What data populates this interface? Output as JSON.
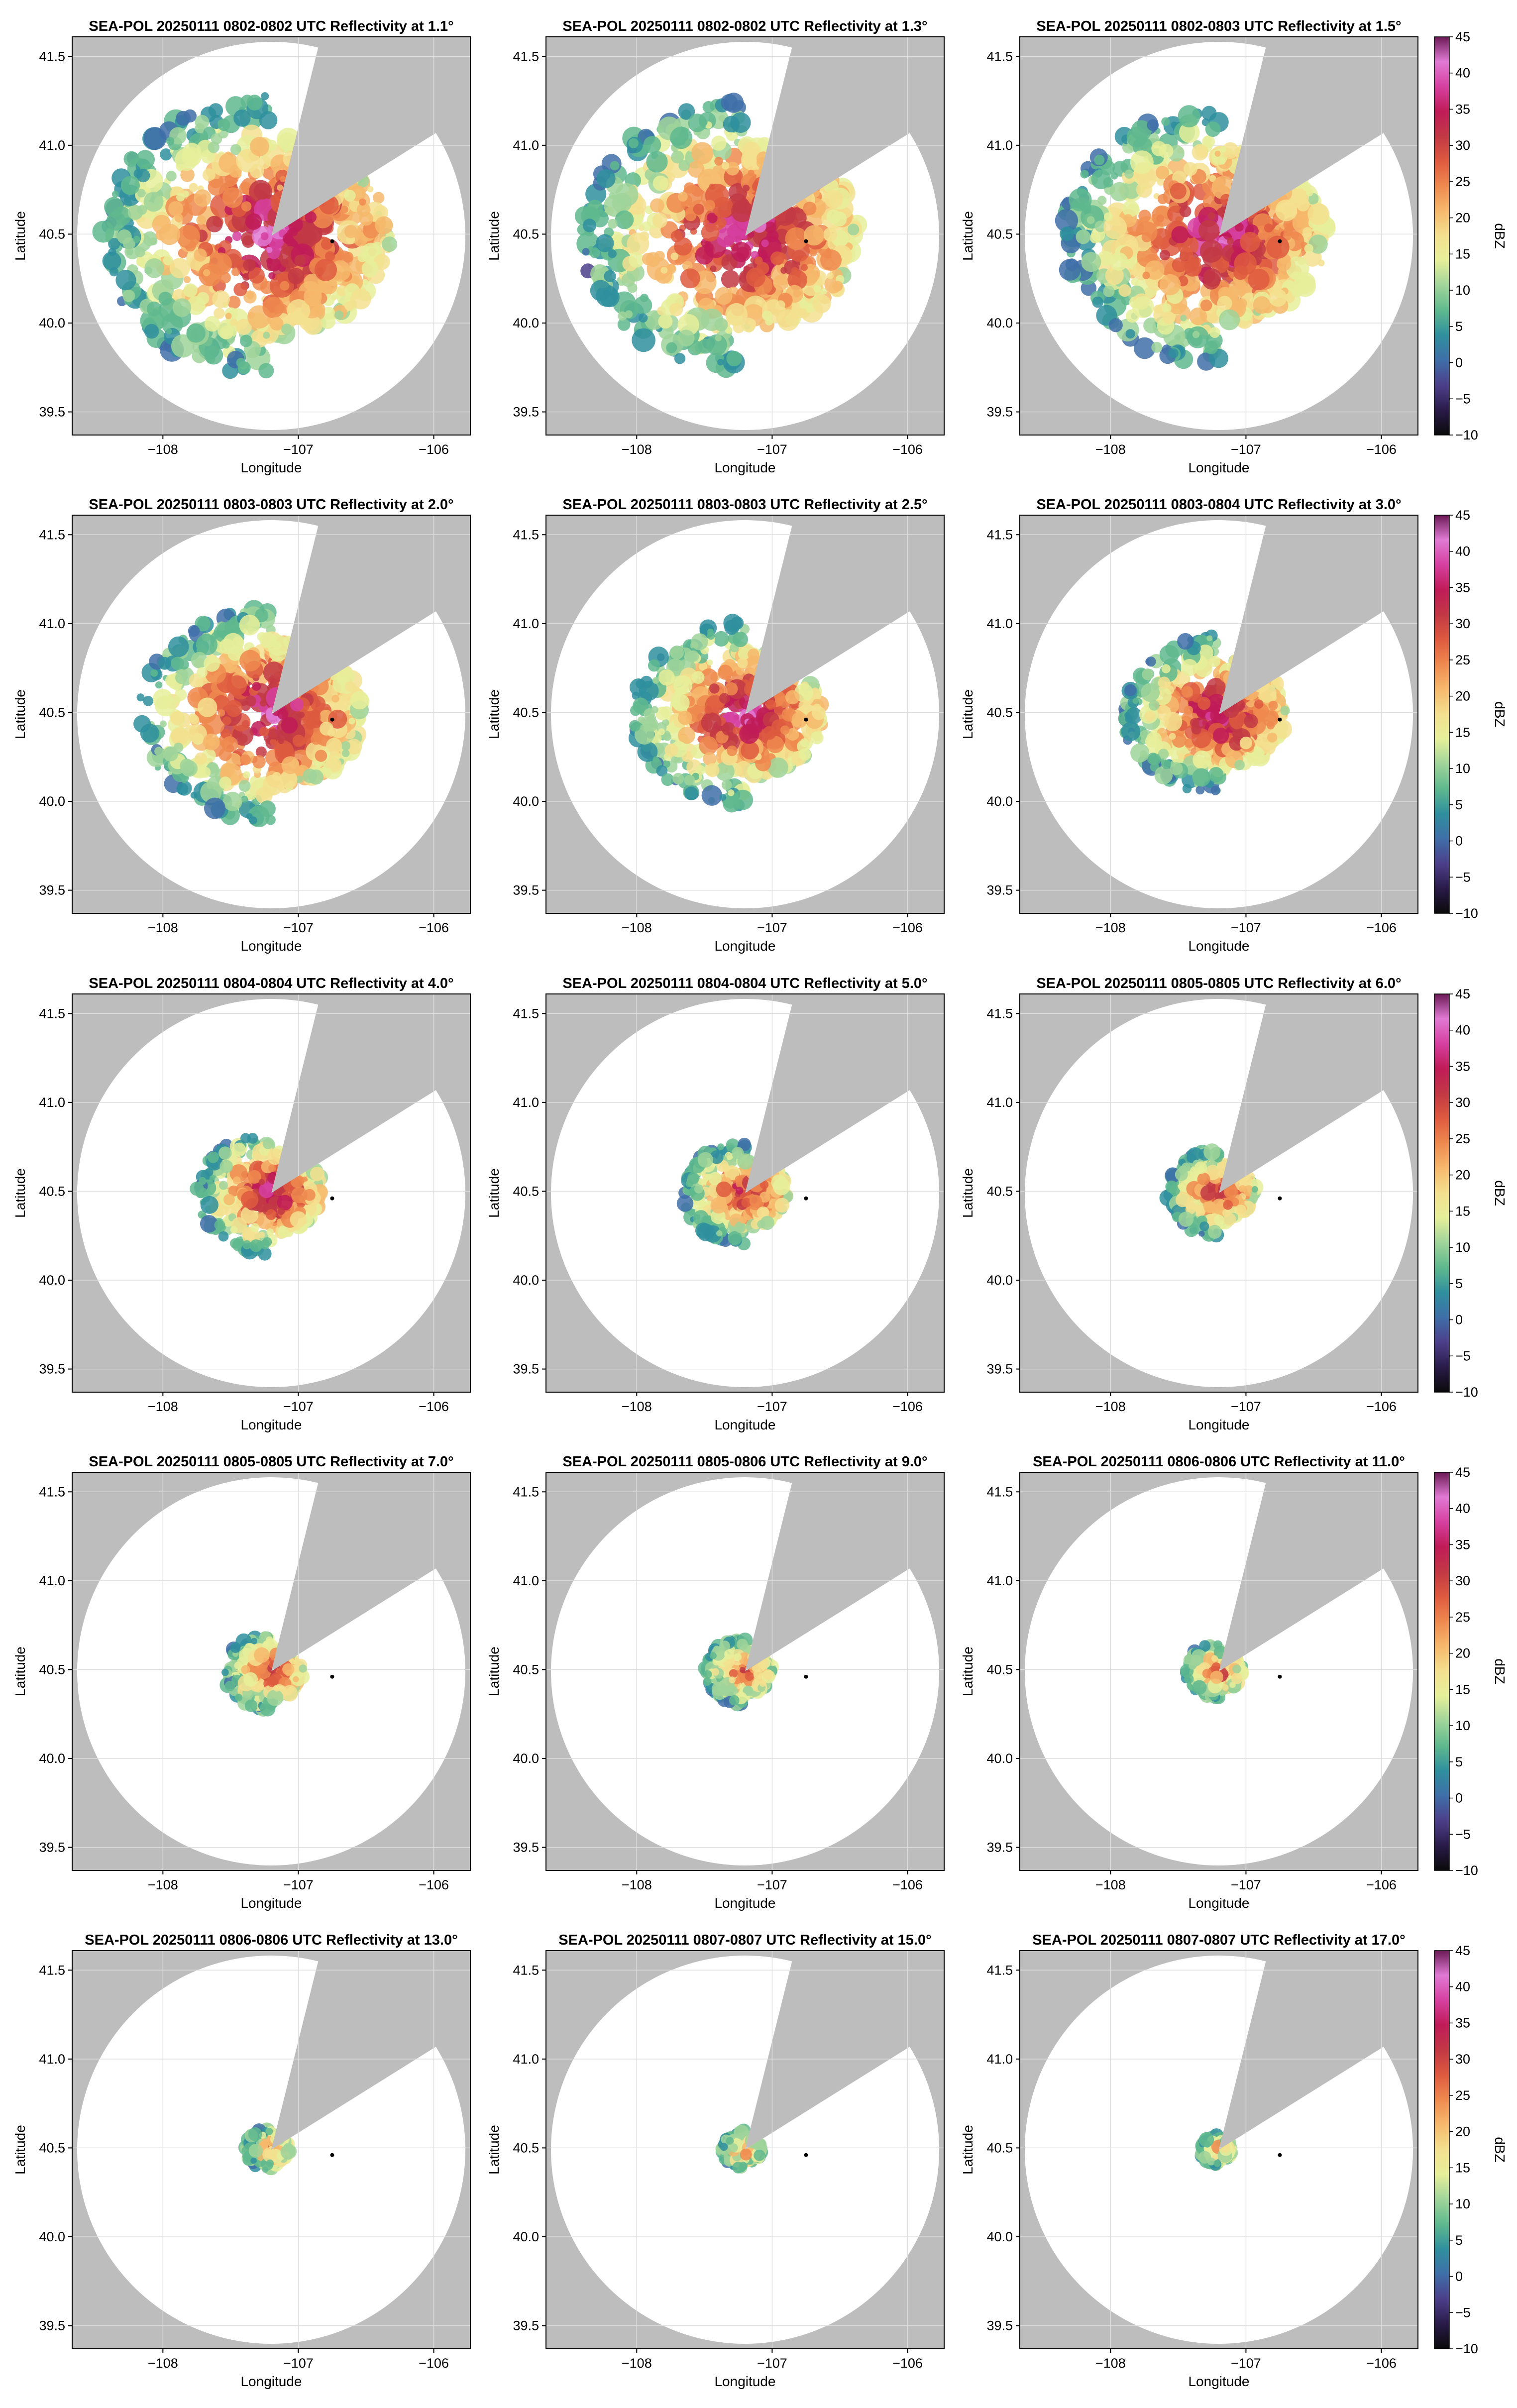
{
  "figure": {
    "colorbar_label": "dBZ",
    "colorbar_ticks": [
      "45",
      "40",
      "35",
      "30",
      "25",
      "20",
      "15",
      "10",
      "5",
      "0",
      "−5",
      "−10"
    ],
    "colors": {
      "no_coverage": "#bdbdbd",
      "grid": "#dddddd",
      "marker": "#000000"
    },
    "colormap": [
      "#0a0a0a",
      "#2a1b4a",
      "#4c3f8a",
      "#3f6fa8",
      "#2f8f9e",
      "#5fb98e",
      "#9fd49a",
      "#e6ef9a",
      "#f3e08f",
      "#f6b86c",
      "#ef8a4f",
      "#de5a3f",
      "#c23844",
      "#c01b58",
      "#d640a0",
      "#e07ad4",
      "#6b1a56"
    ]
  },
  "chart_data": [
    {
      "type": "heatmap",
      "title": "SEA-POL 20250111 0802-0802 UTC Reflectivity at 1.1°",
      "xlabel": "Longitude",
      "ylabel": "Latitude",
      "xticks": [
        "−108",
        "−107",
        "−106"
      ],
      "yticks": [
        "41.5",
        "41.0",
        "40.5",
        "40.0",
        "39.5"
      ],
      "xlim": [
        -108.67,
        -105.73
      ],
      "ylim": [
        39.37,
        41.61
      ],
      "radar_site": {
        "lon": -107.2,
        "lat": 40.48
      },
      "marker": {
        "lon": -106.75,
        "lat": 40.46
      },
      "echo_radius_deg": 1.1,
      "max_dbz": 40,
      "colorbar": false
    },
    {
      "type": "heatmap",
      "title": "SEA-POL 20250111 0802-0802 UTC Reflectivity at 1.3°",
      "xlabel": "Longitude",
      "ylabel": "Latitude",
      "xticks": [
        "−108",
        "−107",
        "−106"
      ],
      "yticks": [
        "41.5",
        "41.0",
        "40.5",
        "40.0",
        "39.5"
      ],
      "xlim": [
        -108.67,
        -105.73
      ],
      "ylim": [
        39.37,
        41.61
      ],
      "radar_site": {
        "lon": -107.2,
        "lat": 40.48
      },
      "marker": {
        "lon": -106.75,
        "lat": 40.46
      },
      "echo_radius_deg": 1.05,
      "max_dbz": 40,
      "colorbar": false
    },
    {
      "type": "heatmap",
      "title": "SEA-POL 20250111 0802-0803 UTC Reflectivity at 1.5°",
      "xlabel": "Longitude",
      "ylabel": "Latitude",
      "xticks": [
        "−108",
        "−107",
        "−106"
      ],
      "yticks": [
        "41.5",
        "41.0",
        "40.5",
        "40.0",
        "39.5"
      ],
      "xlim": [
        -108.67,
        -105.73
      ],
      "ylim": [
        39.37,
        41.61
      ],
      "radar_site": {
        "lon": -107.2,
        "lat": 40.48
      },
      "marker": {
        "lon": -106.75,
        "lat": 40.46
      },
      "echo_radius_deg": 1.0,
      "max_dbz": 40,
      "colorbar": true,
      "colorbar_label": "dBZ",
      "colorbar_range": [
        -10,
        45
      ]
    },
    {
      "type": "heatmap",
      "title": "SEA-POL 20250111 0803-0803 UTC Reflectivity at 2.0°",
      "xlabel": "Longitude",
      "ylabel": "Latitude",
      "xticks": [
        "−108",
        "−107",
        "−106"
      ],
      "yticks": [
        "41.5",
        "41.0",
        "40.5",
        "40.0",
        "39.5"
      ],
      "xlim": [
        -108.67,
        -105.73
      ],
      "ylim": [
        39.37,
        41.61
      ],
      "radar_site": {
        "lon": -107.2,
        "lat": 40.48
      },
      "marker": {
        "lon": -106.75,
        "lat": 40.46
      },
      "echo_radius_deg": 0.85,
      "max_dbz": 40,
      "colorbar": false
    },
    {
      "type": "heatmap",
      "title": "SEA-POL 20250111 0803-0803 UTC Reflectivity at 2.5°",
      "xlabel": "Longitude",
      "ylabel": "Latitude",
      "xticks": [
        "−108",
        "−107",
        "−106"
      ],
      "yticks": [
        "41.5",
        "41.0",
        "40.5",
        "40.0",
        "39.5"
      ],
      "xlim": [
        -108.67,
        -105.73
      ],
      "ylim": [
        39.37,
        41.61
      ],
      "radar_site": {
        "lon": -107.2,
        "lat": 40.48
      },
      "marker": {
        "lon": -106.75,
        "lat": 40.46
      },
      "echo_radius_deg": 0.72,
      "max_dbz": 40,
      "colorbar": false
    },
    {
      "type": "heatmap",
      "title": "SEA-POL 20250111 0803-0804 UTC Reflectivity at 3.0°",
      "xlabel": "Longitude",
      "ylabel": "Latitude",
      "xticks": [
        "−108",
        "−107",
        "−106"
      ],
      "yticks": [
        "41.5",
        "41.0",
        "40.5",
        "40.0",
        "39.5"
      ],
      "xlim": [
        -108.67,
        -105.73
      ],
      "ylim": [
        39.37,
        41.61
      ],
      "radar_site": {
        "lon": -107.2,
        "lat": 40.48
      },
      "marker": {
        "lon": -106.75,
        "lat": 40.46
      },
      "echo_radius_deg": 0.62,
      "max_dbz": 40,
      "colorbar": true,
      "colorbar_label": "dBZ",
      "colorbar_range": [
        -10,
        45
      ]
    },
    {
      "type": "heatmap",
      "title": "SEA-POL 20250111 0804-0804 UTC Reflectivity at 4.0°",
      "xlabel": "Longitude",
      "ylabel": "Latitude",
      "xticks": [
        "−108",
        "−107",
        "−106"
      ],
      "yticks": [
        "41.5",
        "41.0",
        "40.5",
        "40.0",
        "39.5"
      ],
      "xlim": [
        -108.67,
        -105.73
      ],
      "ylim": [
        39.37,
        41.61
      ],
      "radar_site": {
        "lon": -107.2,
        "lat": 40.48
      },
      "marker": {
        "lon": -106.75,
        "lat": 40.46
      },
      "echo_radius_deg": 0.48,
      "max_dbz": 38,
      "colorbar": false
    },
    {
      "type": "heatmap",
      "title": "SEA-POL 20250111 0804-0804 UTC Reflectivity at 5.0°",
      "xlabel": "Longitude",
      "ylabel": "Latitude",
      "xticks": [
        "−108",
        "−107",
        "−106"
      ],
      "yticks": [
        "41.5",
        "41.0",
        "40.5",
        "40.0",
        "39.5"
      ],
      "xlim": [
        -108.67,
        -105.73
      ],
      "ylim": [
        39.37,
        41.61
      ],
      "radar_site": {
        "lon": -107.2,
        "lat": 40.48
      },
      "marker": {
        "lon": -106.75,
        "lat": 40.46
      },
      "echo_radius_deg": 0.4,
      "max_dbz": 35,
      "colorbar": false
    },
    {
      "type": "heatmap",
      "title": "SEA-POL 20250111 0805-0805 UTC Reflectivity at 6.0°",
      "xlabel": "Longitude",
      "ylabel": "Latitude",
      "xticks": [
        "−108",
        "−107",
        "−106"
      ],
      "yticks": [
        "41.5",
        "41.0",
        "40.5",
        "40.0",
        "39.5"
      ],
      "xlim": [
        -108.67,
        -105.73
      ],
      "ylim": [
        39.37,
        41.61
      ],
      "radar_site": {
        "lon": -107.2,
        "lat": 40.48
      },
      "marker": {
        "lon": -106.75,
        "lat": 40.46
      },
      "echo_radius_deg": 0.34,
      "max_dbz": 33,
      "colorbar": true,
      "colorbar_label": "dBZ",
      "colorbar_range": [
        -10,
        45
      ]
    },
    {
      "type": "heatmap",
      "title": "SEA-POL 20250111 0805-0805 UTC Reflectivity at 7.0°",
      "xlabel": "Longitude",
      "ylabel": "Latitude",
      "xticks": [
        "−108",
        "−107",
        "−106"
      ],
      "yticks": [
        "41.5",
        "41.0",
        "40.5",
        "40.0",
        "39.5"
      ],
      "xlim": [
        -108.67,
        -105.73
      ],
      "ylim": [
        39.37,
        41.61
      ],
      "radar_site": {
        "lon": -107.2,
        "lat": 40.48
      },
      "marker": {
        "lon": -106.75,
        "lat": 40.46
      },
      "echo_radius_deg": 0.3,
      "max_dbz": 32,
      "colorbar": false
    },
    {
      "type": "heatmap",
      "title": "SEA-POL 20250111 0805-0806 UTC Reflectivity at 9.0°",
      "xlabel": "Longitude",
      "ylabel": "Latitude",
      "xticks": [
        "−108",
        "−107",
        "−106"
      ],
      "yticks": [
        "41.5",
        "41.0",
        "40.5",
        "40.0",
        "39.5"
      ],
      "xlim": [
        -108.67,
        -105.73
      ],
      "ylim": [
        39.37,
        41.61
      ],
      "radar_site": {
        "lon": -107.2,
        "lat": 40.48
      },
      "marker": {
        "lon": -106.75,
        "lat": 40.46
      },
      "echo_radius_deg": 0.26,
      "max_dbz": 30,
      "colorbar": false
    },
    {
      "type": "heatmap",
      "title": "SEA-POL 20250111 0806-0806 UTC Reflectivity at 11.0°",
      "xlabel": "Longitude",
      "ylabel": "Latitude",
      "xticks": [
        "−108",
        "−107",
        "−106"
      ],
      "yticks": [
        "41.5",
        "41.0",
        "40.5",
        "40.0",
        "39.5"
      ],
      "xlim": [
        -108.67,
        -105.73
      ],
      "ylim": [
        39.37,
        41.61
      ],
      "radar_site": {
        "lon": -107.2,
        "lat": 40.48
      },
      "marker": {
        "lon": -106.75,
        "lat": 40.46
      },
      "echo_radius_deg": 0.22,
      "max_dbz": 28,
      "colorbar": true,
      "colorbar_label": "dBZ",
      "colorbar_range": [
        -10,
        45
      ]
    },
    {
      "type": "heatmap",
      "title": "SEA-POL 20250111 0806-0806 UTC Reflectivity at 13.0°",
      "xlabel": "Longitude",
      "ylabel": "Latitude",
      "xticks": [
        "−108",
        "−107",
        "−106"
      ],
      "yticks": [
        "41.5",
        "41.0",
        "40.5",
        "40.0",
        "39.5"
      ],
      "xlim": [
        -108.67,
        -105.73
      ],
      "ylim": [
        39.37,
        41.61
      ],
      "radar_site": {
        "lon": -107.2,
        "lat": 40.48
      },
      "marker": {
        "lon": -106.75,
        "lat": 40.46
      },
      "echo_radius_deg": 0.17,
      "max_dbz": 25,
      "colorbar": false
    },
    {
      "type": "heatmap",
      "title": "SEA-POL 20250111 0807-0807 UTC Reflectivity at 15.0°",
      "xlabel": "Longitude",
      "ylabel": "Latitude",
      "xticks": [
        "−108",
        "−107",
        "−106"
      ],
      "yticks": [
        "41.5",
        "41.0",
        "40.5",
        "40.0",
        "39.5"
      ],
      "xlim": [
        -108.67,
        -105.73
      ],
      "ylim": [
        39.37,
        41.61
      ],
      "radar_site": {
        "lon": -107.2,
        "lat": 40.48
      },
      "marker": {
        "lon": -106.75,
        "lat": 40.46
      },
      "echo_radius_deg": 0.15,
      "max_dbz": 24,
      "colorbar": false
    },
    {
      "type": "heatmap",
      "title": "SEA-POL 20250111 0807-0807 UTC Reflectivity at 17.0°",
      "xlabel": "Longitude",
      "ylabel": "Latitude",
      "xticks": [
        "−108",
        "−107",
        "−106"
      ],
      "yticks": [
        "41.5",
        "41.0",
        "40.5",
        "40.0",
        "39.5"
      ],
      "xlim": [
        -108.67,
        -105.73
      ],
      "ylim": [
        39.37,
        41.61
      ],
      "radar_site": {
        "lon": -107.2,
        "lat": 40.48
      },
      "marker": {
        "lon": -106.75,
        "lat": 40.46
      },
      "echo_radius_deg": 0.12,
      "max_dbz": 22,
      "colorbar": true,
      "colorbar_label": "dBZ",
      "colorbar_range": [
        -10,
        45
      ]
    }
  ]
}
